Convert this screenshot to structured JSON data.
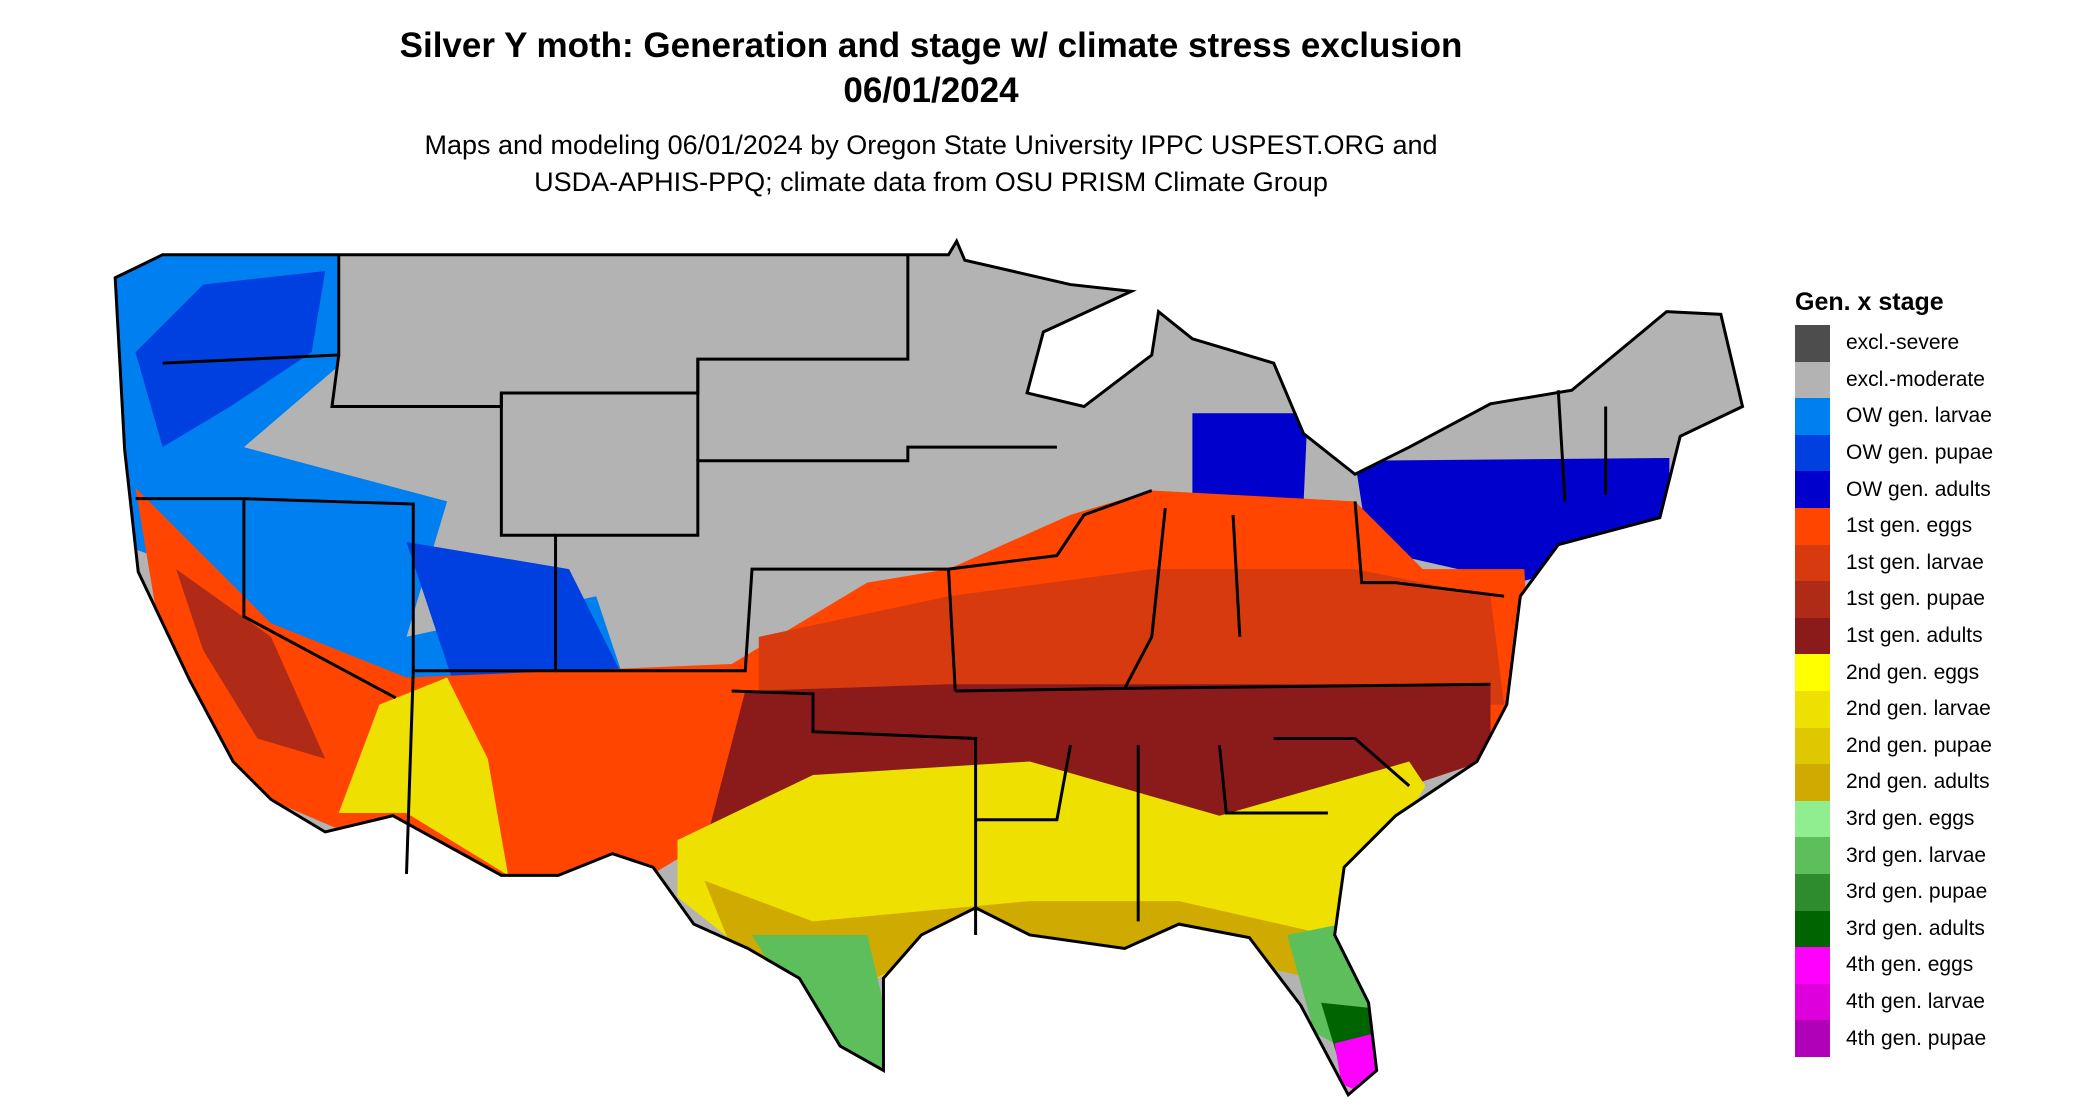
{
  "title": "Silver Y moth: Generation and stage w/ climate stress exclusion",
  "date": "06/01/2024",
  "subtitle_line1": "Maps and modeling 06/01/2024 by Oregon State University IPPC USPEST.ORG and",
  "subtitle_line2": "USDA-APHIS-PPQ; climate data from OSU PRISM Climate Group",
  "legend": {
    "title": "Gen. x stage",
    "items": [
      {
        "label": "excl.-severe",
        "color": "#4d4d4d"
      },
      {
        "label": "excl.-moderate",
        "color": "#b3b3b3"
      },
      {
        "label": "OW gen. larvae",
        "color": "#0080f0"
      },
      {
        "label": "OW gen. pupae",
        "color": "#0040e0"
      },
      {
        "label": "OW gen. adults",
        "color": "#0000cc"
      },
      {
        "label": "1st gen. eggs",
        "color": "#ff4500"
      },
      {
        "label": "1st gen. larvae",
        "color": "#d83a10"
      },
      {
        "label": "1st gen. pupae",
        "color": "#b02a18"
      },
      {
        "label": "1st gen. adults",
        "color": "#8b1a1a"
      },
      {
        "label": "2nd gen. eggs",
        "color": "#ffff00"
      },
      {
        "label": "2nd gen. larvae",
        "color": "#eee000"
      },
      {
        "label": "2nd gen. pupae",
        "color": "#e0c800"
      },
      {
        "label": "2nd gen. adults",
        "color": "#cfaa00"
      },
      {
        "label": "3rd gen. eggs",
        "color": "#90ee90"
      },
      {
        "label": "3rd gen. larvae",
        "color": "#5cbf5c"
      },
      {
        "label": "3rd gen. pupae",
        "color": "#2e8b2e"
      },
      {
        "label": "3rd gen. adults",
        "color": "#006400"
      },
      {
        "label": "4th gen. eggs",
        "color": "#ff00ff"
      },
      {
        "label": "4th gen. larvae",
        "color": "#dd00dd"
      },
      {
        "label": "4th gen. pupae",
        "color": "#b000b8"
      }
    ]
  }
}
